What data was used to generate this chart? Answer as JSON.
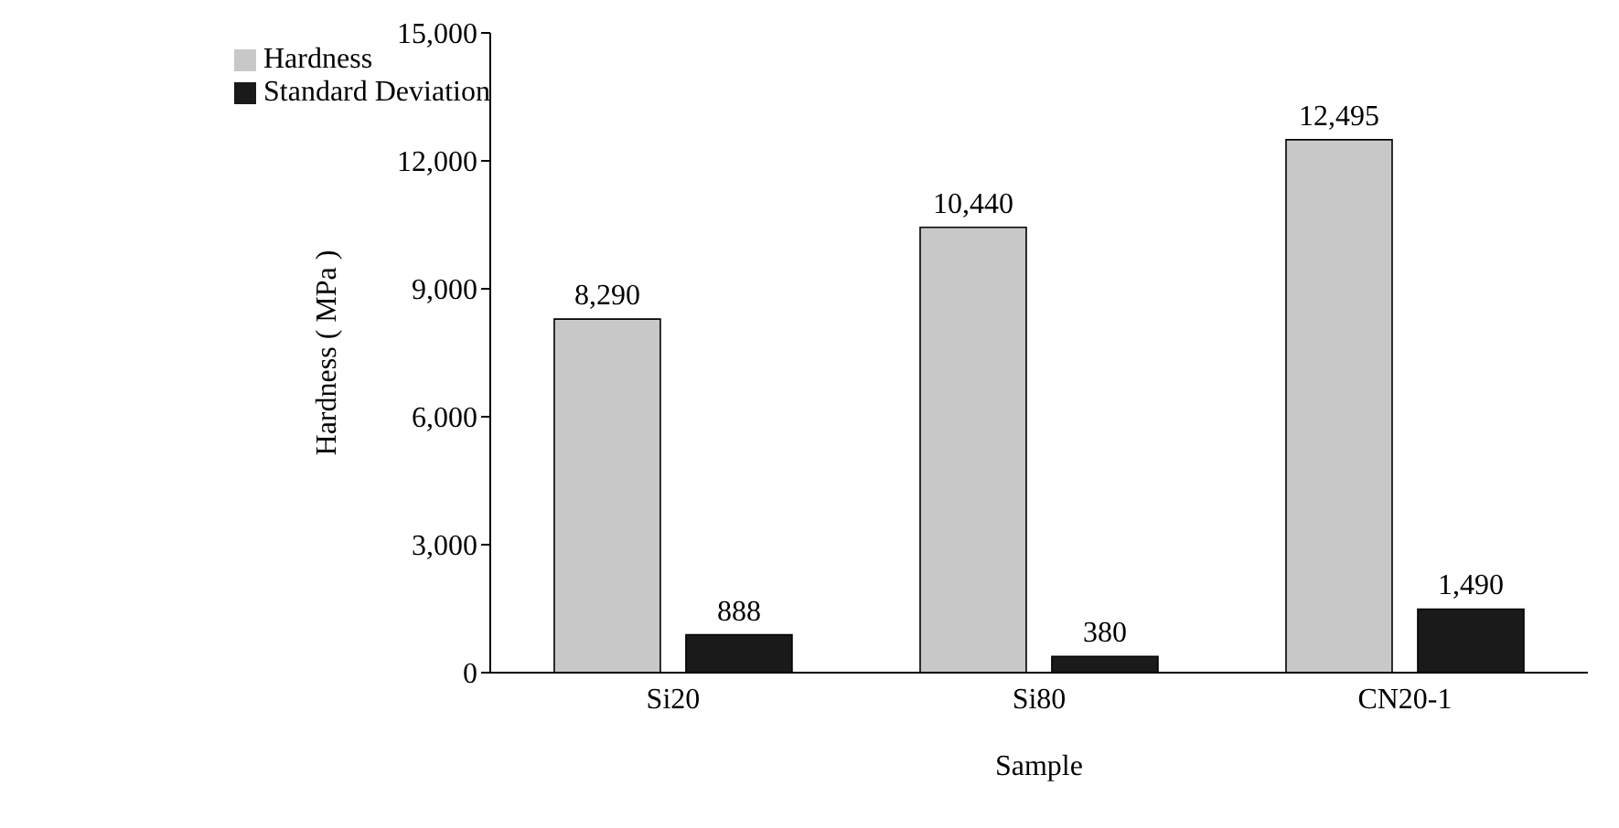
{
  "chart_data": {
    "type": "bar",
    "xlabel": "Sample",
    "ylabel": "Hardness ( MPa )",
    "categories": [
      "Si20",
      "Si80",
      "CN20-1"
    ],
    "series": [
      {
        "name": "Hardness",
        "color": "#c8c8c8",
        "values": [
          8290,
          10440,
          12495
        ]
      },
      {
        "name": "Standard Deviation",
        "color": "#1a1a1a",
        "values": [
          888,
          380,
          1490
        ]
      }
    ],
    "ylim": [
      0,
      15000
    ],
    "yticks": [
      {
        "value": 0,
        "label": "0"
      },
      {
        "value": 3000,
        "label": "3,000"
      },
      {
        "value": 6000,
        "label": "6,000"
      },
      {
        "value": 9000,
        "label": "9,000"
      },
      {
        "value": 12000,
        "label": "12,000"
      },
      {
        "value": 15000,
        "label": "15,000"
      }
    ],
    "value_labels": [
      [
        "8,290",
        "10,440",
        "12,495"
      ],
      [
        "888",
        "380",
        "1,490"
      ]
    ],
    "grid": false,
    "legend": "top left"
  }
}
